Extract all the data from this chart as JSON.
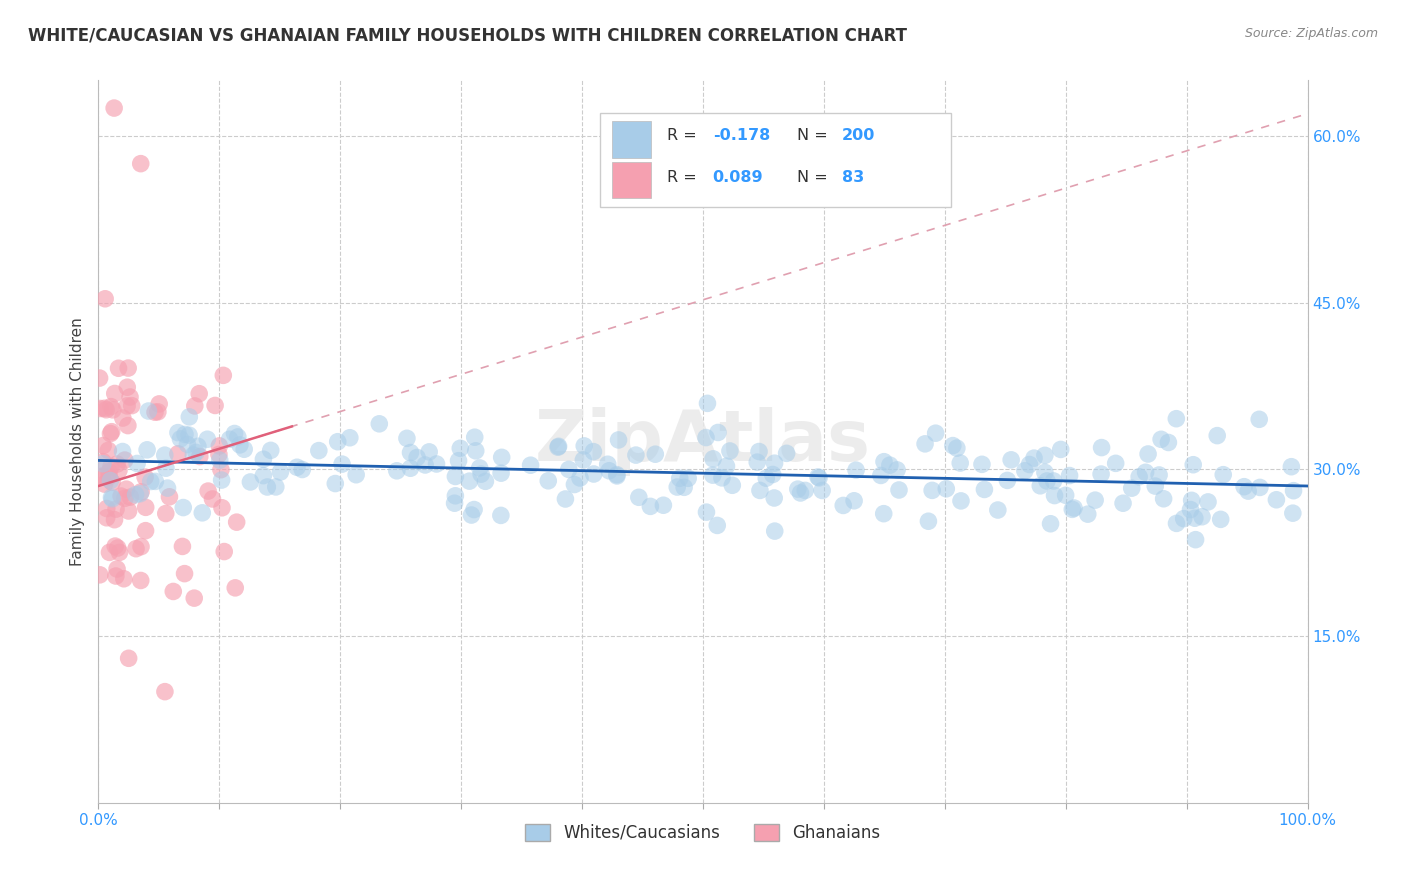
{
  "title": "WHITE/CAUCASIAN VS GHANAIAN FAMILY HOUSEHOLDS WITH CHILDREN CORRELATION CHART",
  "source": "Source: ZipAtlas.com",
  "ylabel": "Family Households with Children",
  "xlim": [
    0,
    1.0
  ],
  "ylim": [
    0,
    0.65
  ],
  "yticks": [
    0.15,
    0.3,
    0.45,
    0.6
  ],
  "xticks": [
    0.0,
    0.1,
    0.2,
    0.3,
    0.4,
    0.5,
    0.6,
    0.7,
    0.8,
    0.9,
    1.0
  ],
  "legend_labels": [
    "Whites/Caucasians",
    "Ghanaians"
  ],
  "blue_color": "#a8cce8",
  "pink_color": "#f5a0b0",
  "blue_line_color": "#2060b0",
  "pink_line_color": "#e0607a",
  "pink_dash_color": "#e0a0b0",
  "R_blue": -0.178,
  "N_blue": 200,
  "R_pink": 0.089,
  "N_pink": 83,
  "watermark": "ZipAtlas",
  "background_color": "#ffffff",
  "grid_color": "#cccccc",
  "title_fontsize": 12,
  "axis_label_fontsize": 11,
  "tick_fontsize": 11,
  "legend_fontsize": 12,
  "blue_line_y_start": 0.308,
  "blue_line_y_end": 0.285,
  "pink_line_x_start": 0.0,
  "pink_line_x_end": 1.0,
  "pink_line_y_start": 0.285,
  "pink_line_y_end": 0.62
}
